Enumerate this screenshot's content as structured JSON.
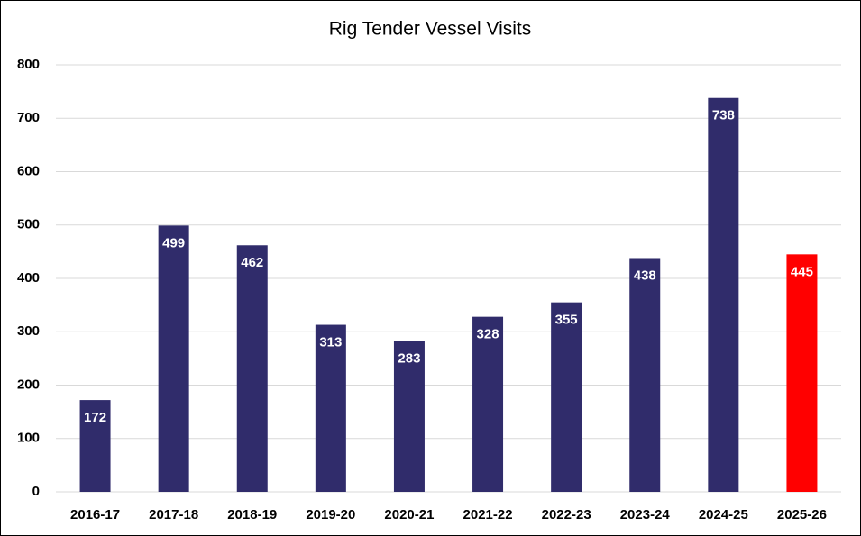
{
  "chart_data": {
    "type": "bar",
    "title": "Rig Tender Vessel Visits",
    "categories": [
      "2016-17",
      "2017-18",
      "2018-19",
      "2019-20",
      "2020-21",
      "2021-22",
      "2022-23",
      "2023-24",
      "2024-25",
      "2025-26"
    ],
    "values": [
      172,
      499,
      462,
      313,
      283,
      328,
      355,
      438,
      738,
      445
    ],
    "colors": [
      "#302c6b",
      "#302c6b",
      "#302c6b",
      "#302c6b",
      "#302c6b",
      "#302c6b",
      "#302c6b",
      "#302c6b",
      "#302c6b",
      "#ff0000"
    ],
    "ylim": [
      0,
      800
    ],
    "yticks": [
      0,
      100,
      200,
      300,
      400,
      500,
      600,
      700,
      800
    ],
    "grid": true
  }
}
